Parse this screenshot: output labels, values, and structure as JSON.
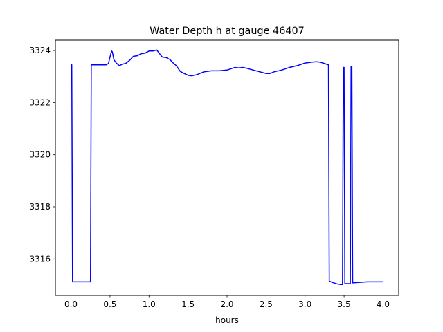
{
  "chart_data": {
    "type": "line",
    "title": "Water Depth h at gauge 46407",
    "xlabel": "hours",
    "ylabel": "",
    "xlim": [
      -0.2,
      4.2
    ],
    "ylim": [
      3314.6,
      3324.4
    ],
    "xticks": [
      "0.0",
      "0.5",
      "1.0",
      "1.5",
      "2.0",
      "2.5",
      "3.0",
      "3.5",
      "4.0"
    ],
    "yticks": [
      "3316",
      "3318",
      "3320",
      "3322",
      "3324"
    ],
    "grid": false,
    "line_color": "#0000ff",
    "series": [
      {
        "points": [
          [
            0.0,
            3323.45
          ],
          [
            0.01,
            3323.45
          ],
          [
            0.02,
            3315.12
          ],
          [
            0.1,
            3315.12
          ],
          [
            0.2,
            3315.12
          ],
          [
            0.25,
            3315.12
          ],
          [
            0.26,
            3323.45
          ],
          [
            0.3,
            3323.45
          ],
          [
            0.35,
            3323.45
          ],
          [
            0.4,
            3323.45
          ],
          [
            0.45,
            3323.45
          ],
          [
            0.48,
            3323.5
          ],
          [
            0.5,
            3323.75
          ],
          [
            0.52,
            3323.98
          ],
          [
            0.53,
            3323.95
          ],
          [
            0.55,
            3323.65
          ],
          [
            0.58,
            3323.52
          ],
          [
            0.62,
            3323.42
          ],
          [
            0.66,
            3323.48
          ],
          [
            0.7,
            3323.5
          ],
          [
            0.75,
            3323.62
          ],
          [
            0.8,
            3323.78
          ],
          [
            0.85,
            3323.8
          ],
          [
            0.9,
            3323.88
          ],
          [
            0.95,
            3323.9
          ],
          [
            1.0,
            3323.98
          ],
          [
            1.05,
            3323.98
          ],
          [
            1.1,
            3324.02
          ],
          [
            1.13,
            3323.9
          ],
          [
            1.17,
            3323.75
          ],
          [
            1.22,
            3323.73
          ],
          [
            1.27,
            3323.65
          ],
          [
            1.3,
            3323.55
          ],
          [
            1.35,
            3323.42
          ],
          [
            1.4,
            3323.2
          ],
          [
            1.45,
            3323.12
          ],
          [
            1.5,
            3323.05
          ],
          [
            1.55,
            3323.03
          ],
          [
            1.62,
            3323.08
          ],
          [
            1.7,
            3323.18
          ],
          [
            1.8,
            3323.22
          ],
          [
            1.9,
            3323.22
          ],
          [
            2.0,
            3323.25
          ],
          [
            2.05,
            3323.3
          ],
          [
            2.1,
            3323.35
          ],
          [
            2.15,
            3323.33
          ],
          [
            2.2,
            3323.35
          ],
          [
            2.25,
            3323.32
          ],
          [
            2.3,
            3323.28
          ],
          [
            2.4,
            3323.2
          ],
          [
            2.5,
            3323.12
          ],
          [
            2.55,
            3323.12
          ],
          [
            2.6,
            3323.18
          ],
          [
            2.7,
            3323.25
          ],
          [
            2.8,
            3323.35
          ],
          [
            2.9,
            3323.42
          ],
          [
            3.0,
            3323.52
          ],
          [
            3.1,
            3323.56
          ],
          [
            3.15,
            3323.57
          ],
          [
            3.2,
            3323.55
          ],
          [
            3.25,
            3323.5
          ],
          [
            3.3,
            3323.45
          ],
          [
            3.31,
            3315.15
          ],
          [
            3.35,
            3315.1
          ],
          [
            3.4,
            3315.05
          ],
          [
            3.45,
            3315.02
          ],
          [
            3.48,
            3315.02
          ],
          [
            3.49,
            3323.35
          ],
          [
            3.5,
            3323.35
          ],
          [
            3.51,
            3315.05
          ],
          [
            3.55,
            3315.05
          ],
          [
            3.58,
            3315.05
          ],
          [
            3.59,
            3323.38
          ],
          [
            3.6,
            3323.4
          ],
          [
            3.61,
            3315.08
          ],
          [
            3.7,
            3315.1
          ],
          [
            3.8,
            3315.12
          ],
          [
            3.9,
            3315.12
          ],
          [
            4.0,
            3315.12
          ]
        ]
      }
    ]
  }
}
